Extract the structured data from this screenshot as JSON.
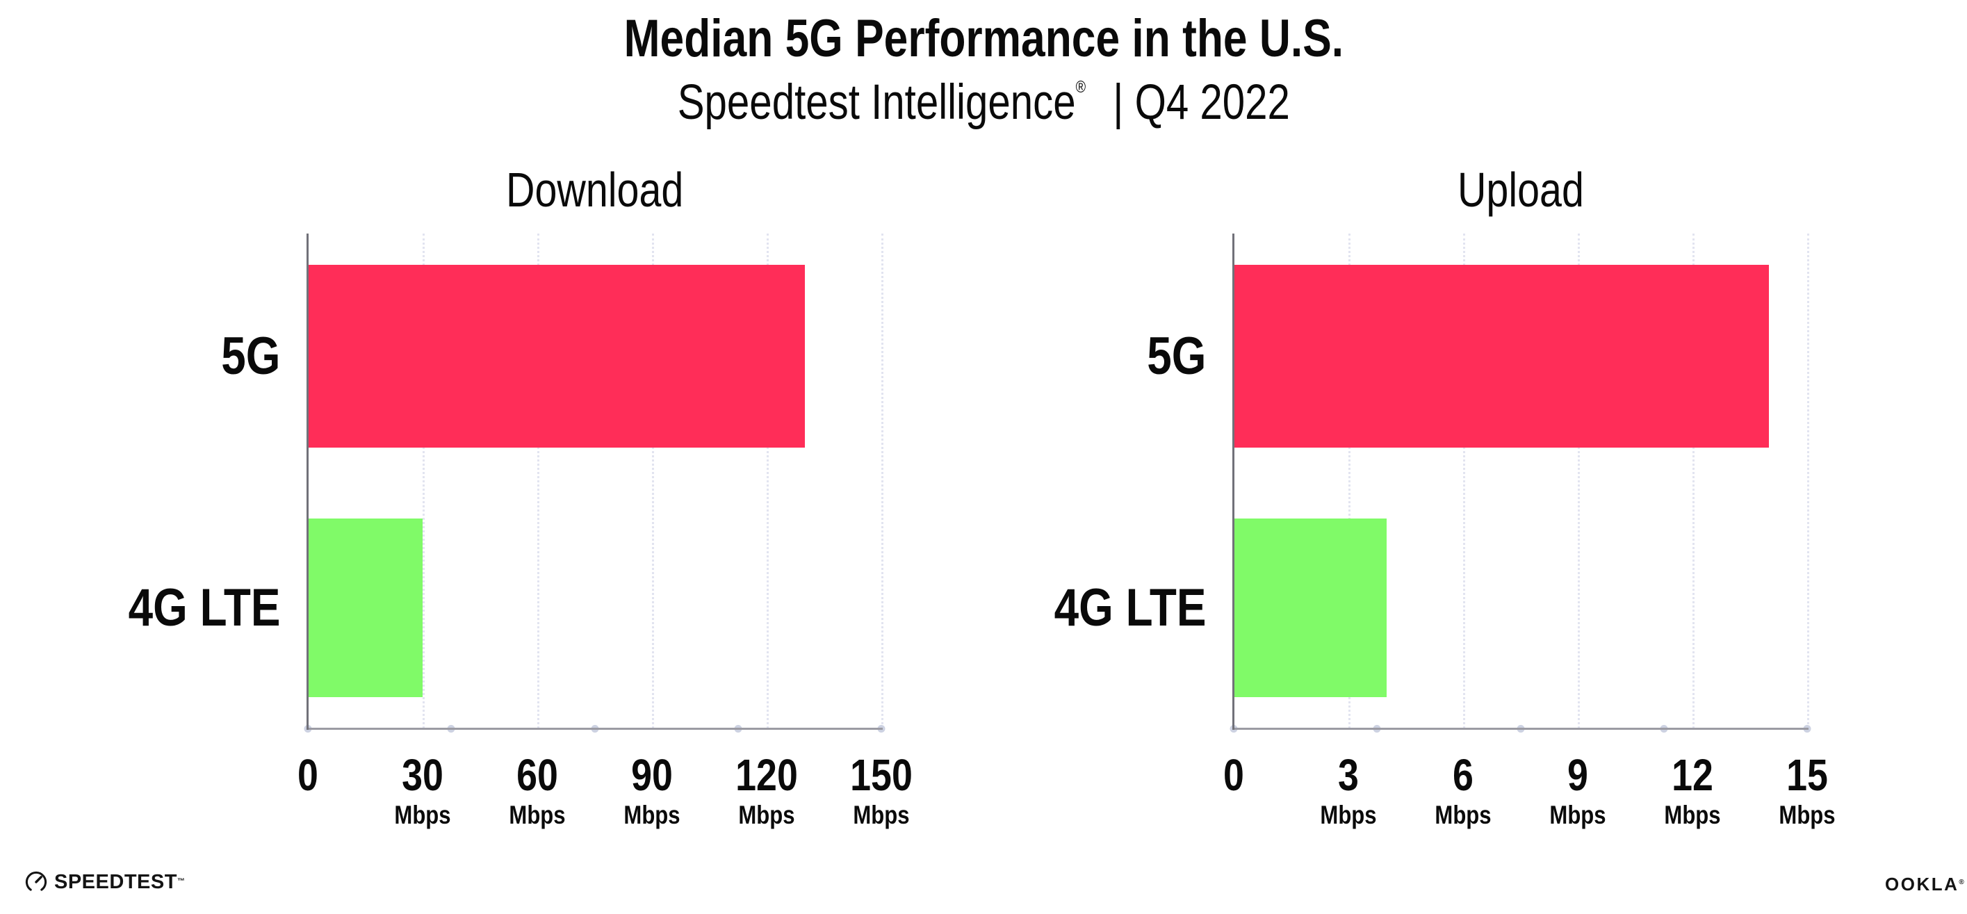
{
  "header": {
    "title": "Median 5G Performance in the U.S.",
    "subtitle_brand": "Speedtest Intelligence",
    "subtitle_reg": "®",
    "subtitle_rest": "| Q4 2022"
  },
  "chart_data": [
    {
      "type": "bar",
      "orientation": "horizontal",
      "title": "Download",
      "categories": [
        "5G",
        "4G LTE"
      ],
      "values": [
        130,
        30
      ],
      "unit": "Mbps",
      "xlim": [
        0,
        150
      ],
      "xticks": [
        0,
        30,
        60,
        90,
        120,
        150
      ],
      "bar_colors": [
        "#ff2d58",
        "#80fa68"
      ],
      "grid": "dotted-vertical",
      "legend": "none"
    },
    {
      "type": "bar",
      "orientation": "horizontal",
      "title": "Upload",
      "categories": [
        "5G",
        "4G LTE"
      ],
      "values": [
        14,
        4
      ],
      "unit": "Mbps",
      "xlim": [
        0,
        15
      ],
      "xticks": [
        0,
        3,
        6,
        9,
        12,
        15
      ],
      "bar_colors": [
        "#ff2d58",
        "#80fa68"
      ],
      "grid": "dotted-vertical",
      "legend": "none"
    }
  ],
  "colors": {
    "bar_5g": "#ff2d58",
    "bar_4g_lte": "#80fa68",
    "gridline": "#e2e4f0",
    "x_axis": "#9b9ba3",
    "y_axis": "#717179",
    "axis_dot": "#cdd2e2",
    "text": "#0a0a0a"
  },
  "footer": {
    "speedtest_label": "SPEEDTEST",
    "speedtest_tm": "™",
    "ookla_label": "OOKLA",
    "ookla_reg": "®"
  }
}
